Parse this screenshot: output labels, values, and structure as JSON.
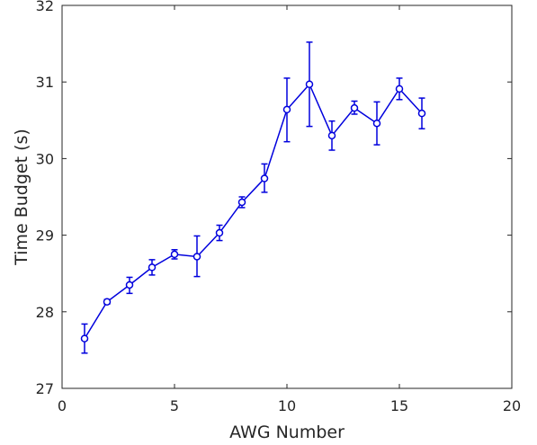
{
  "chart_data": {
    "type": "line",
    "title": "",
    "xlabel": "AWG Number",
    "ylabel": "Time Budget (s)",
    "xlim": [
      0,
      20
    ],
    "ylim": [
      27,
      32
    ],
    "xticks": [
      0,
      5,
      10,
      15,
      20
    ],
    "yticks": [
      27,
      28,
      29,
      30,
      31,
      32
    ],
    "xtick_labels": [
      "0",
      "5",
      "10",
      "15",
      "20"
    ],
    "ytick_labels": [
      "27",
      "28",
      "29",
      "30",
      "31",
      "32"
    ],
    "grid": false,
    "marker": "circle",
    "color": "#0000dd",
    "series": [
      {
        "x": [
          1,
          2,
          3,
          4,
          5,
          6,
          7,
          8,
          9,
          10,
          11,
          12,
          13,
          14,
          15,
          16
        ],
        "y": [
          27.65,
          28.13,
          28.35,
          28.58,
          28.75,
          28.72,
          29.03,
          29.43,
          29.74,
          30.64,
          30.97,
          30.3,
          30.66,
          30.46,
          30.91,
          30.59
        ],
        "err_low": [
          0.19,
          0.03,
          0.11,
          0.1,
          0.06,
          0.26,
          0.1,
          0.07,
          0.18,
          0.42,
          0.55,
          0.19,
          0.08,
          0.28,
          0.14,
          0.2
        ],
        "err_high": [
          0.19,
          0.03,
          0.1,
          0.1,
          0.06,
          0.27,
          0.1,
          0.07,
          0.19,
          0.41,
          0.55,
          0.19,
          0.09,
          0.28,
          0.14,
          0.2
        ]
      }
    ]
  }
}
